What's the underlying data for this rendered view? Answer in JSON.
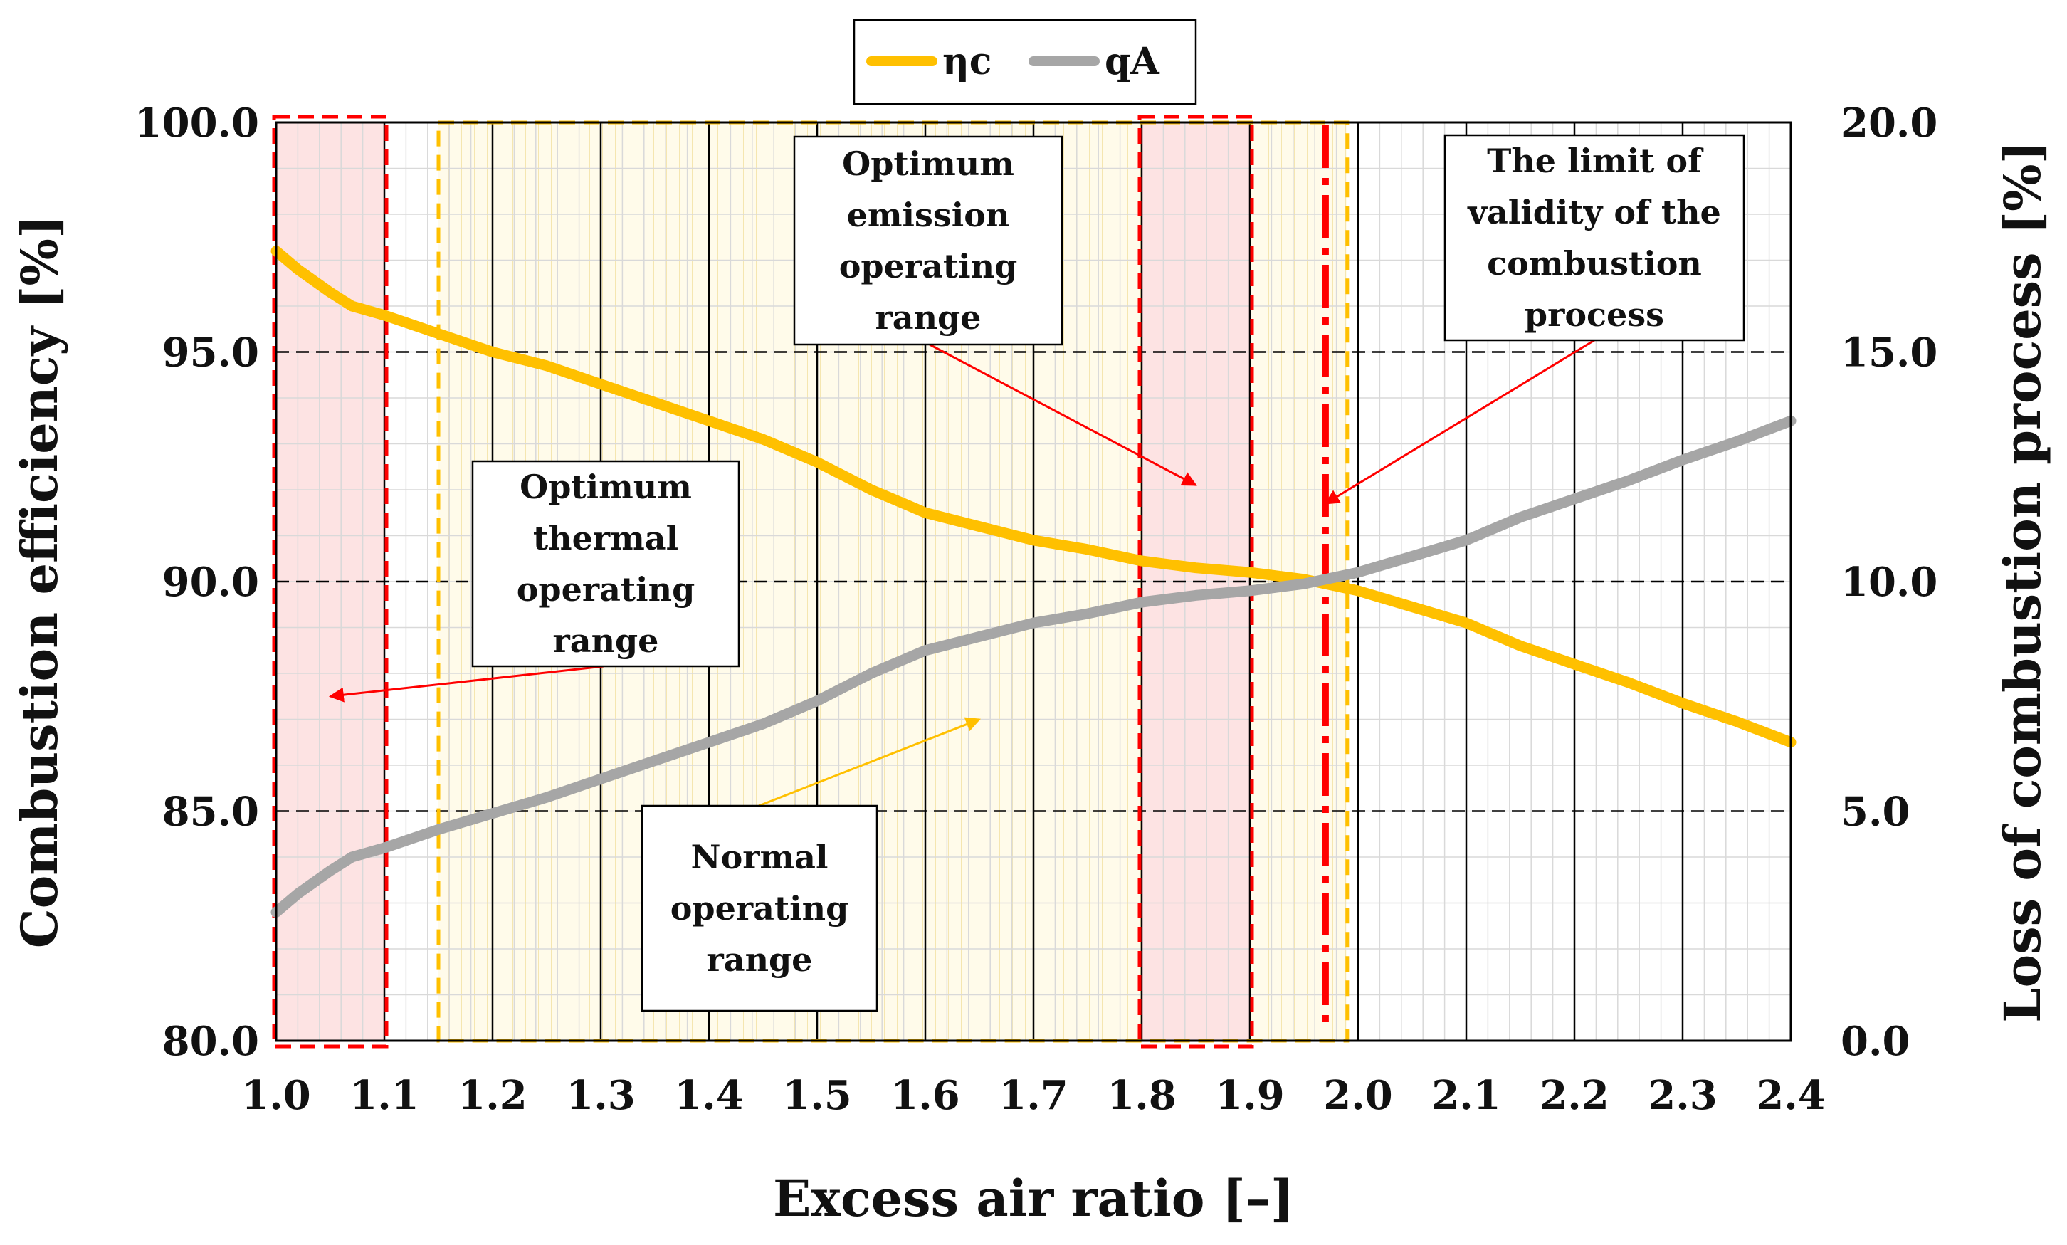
{
  "chart_data": {
    "type": "line",
    "xlabel": "Excess air ratio [–]",
    "ylabel": "Combustion efficiency [%]",
    "y2label": "Loss of combustion process [%]",
    "xlim": [
      1.0,
      2.4
    ],
    "ylim": [
      80.0,
      100.0
    ],
    "y2lim": [
      0.0,
      20.0
    ],
    "x_ticks": [
      "1.0",
      "1.1",
      "1.2",
      "1.3",
      "1.4",
      "1.5",
      "1.6",
      "1.7",
      "1.8",
      "1.9",
      "2.0",
      "2.1",
      "2.2",
      "2.3",
      "2.4"
    ],
    "y_ticks": [
      "80.0",
      "85.0",
      "90.0",
      "95.0",
      "100.0"
    ],
    "y2_ticks": [
      "0.0",
      "5.0",
      "10.0",
      "15.0",
      "20.0"
    ],
    "legend_position": "top-center",
    "series": [
      {
        "name": "ηc",
        "axis": "left",
        "color": "#FFC000",
        "x": [
          1.0,
          1.02,
          1.05,
          1.07,
          1.1,
          1.15,
          1.2,
          1.25,
          1.3,
          1.35,
          1.4,
          1.45,
          1.5,
          1.55,
          1.58,
          1.6,
          1.65,
          1.7,
          1.75,
          1.8,
          1.85,
          1.9,
          1.95,
          2.0,
          2.05,
          2.1,
          2.15,
          2.2,
          2.25,
          2.3,
          2.35,
          2.4
        ],
        "values": [
          97.2,
          96.8,
          96.3,
          96.0,
          95.8,
          95.4,
          95.0,
          94.7,
          94.3,
          93.9,
          93.5,
          93.1,
          92.6,
          92.0,
          91.7,
          91.5,
          91.2,
          90.9,
          90.7,
          90.45,
          90.3,
          90.2,
          90.05,
          89.8,
          89.45,
          89.1,
          88.6,
          88.2,
          87.8,
          87.35,
          86.95,
          86.5
        ]
      },
      {
        "name": "qA",
        "axis": "right",
        "color": "#A6A6A6",
        "x": [
          1.0,
          1.02,
          1.05,
          1.07,
          1.1,
          1.15,
          1.2,
          1.25,
          1.3,
          1.35,
          1.4,
          1.45,
          1.5,
          1.55,
          1.58,
          1.6,
          1.65,
          1.7,
          1.75,
          1.8,
          1.85,
          1.9,
          1.95,
          2.0,
          2.05,
          2.1,
          2.15,
          2.2,
          2.25,
          2.3,
          2.35,
          2.4
        ],
        "values": [
          2.8,
          3.2,
          3.7,
          4.0,
          4.2,
          4.6,
          4.95,
          5.3,
          5.7,
          6.1,
          6.5,
          6.9,
          7.4,
          8.0,
          8.3,
          8.5,
          8.8,
          9.1,
          9.3,
          9.55,
          9.7,
          9.8,
          9.95,
          10.2,
          10.55,
          10.9,
          11.4,
          11.8,
          12.2,
          12.65,
          13.05,
          13.5
        ]
      }
    ],
    "regions": [
      {
        "label": "Optimum thermal operating range",
        "x_start": 1.0,
        "x_end": 1.1,
        "style": "red"
      },
      {
        "label": "Normal operating range",
        "x_start": 1.15,
        "x_end": 1.99,
        "style": "yellow"
      },
      {
        "label": "Optimum emission operating range",
        "x_start": 1.8,
        "x_end": 1.9,
        "style": "red"
      }
    ],
    "validity_limit_x": 1.97,
    "annotations": [
      {
        "text_lines": [
          "Optimum",
          "thermal",
          "operating",
          "range"
        ],
        "target": [
          1.05,
          87.5
        ],
        "color": "#FF0000"
      },
      {
        "text_lines": [
          "Normal",
          "operating",
          "range"
        ],
        "target": [
          1.65,
          87.0
        ],
        "color": "#FFC000"
      },
      {
        "text_lines": [
          "Optimum",
          "emission",
          "operating",
          "range"
        ],
        "target": [
          1.85,
          92.1
        ],
        "color": "#FF0000"
      },
      {
        "text_lines": [
          "The limit of",
          "validity of the",
          "combustion",
          "process"
        ],
        "target": [
          1.97,
          91.7
        ],
        "color": "#FF0000"
      }
    ]
  }
}
